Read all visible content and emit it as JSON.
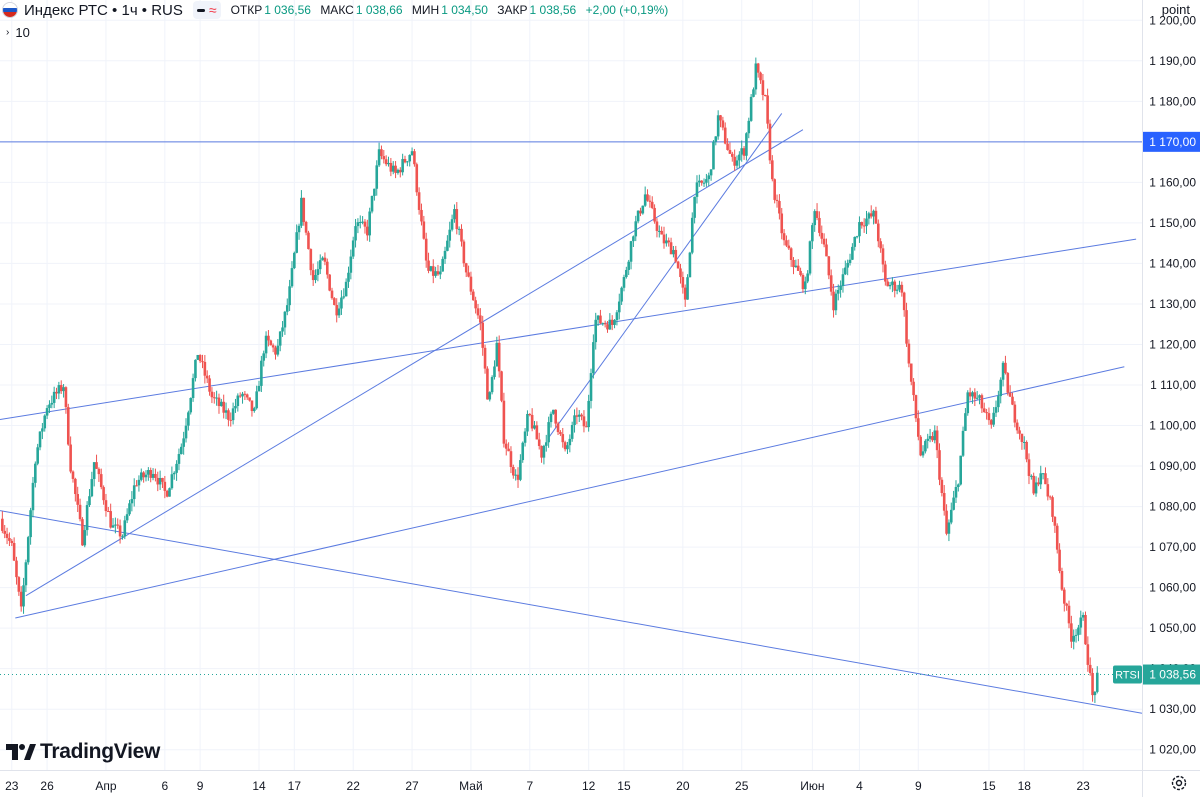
{
  "header": {
    "symbol": "Индекс РТС • 1ч • RUS",
    "ohlc": [
      {
        "label": "ОТКР",
        "value": "1 036,56"
      },
      {
        "label": "МАКС",
        "value": "1 038,66"
      },
      {
        "label": "МИН",
        "value": "1 034,50"
      },
      {
        "label": "ЗАКР",
        "value": "1 038,56"
      }
    ],
    "change": "+2,00 (+0,19%)",
    "pill_wave": "≈"
  },
  "indicator": {
    "chevron": "›",
    "value": "10"
  },
  "price_axis": {
    "title": "point"
  },
  "logo": {
    "text": "TradingView"
  },
  "colors": {
    "up": "#26a69a",
    "down": "#ef5350",
    "line": "#5b7be0",
    "grid": "#f0f3fa",
    "axis_text": "#131722",
    "last_price": "#26a69a",
    "level_label": "#2962ff"
  },
  "chart_data": {
    "type": "candlestick",
    "timeframe": "1h",
    "ylim": [
      1015,
      1205
    ],
    "y_ticks": [
      1020,
      1030,
      1040,
      1050,
      1060,
      1070,
      1080,
      1090,
      1100,
      1110,
      1120,
      1130,
      1140,
      1150,
      1160,
      1170,
      1180,
      1190,
      1200
    ],
    "y_tick_labels": [
      "1 020,00",
      "1 030,00",
      "1 040,00",
      "1 050,00",
      "1 060,00",
      "1 070,00",
      "1 080,00",
      "1 090,00",
      "1 100,00",
      "1 110,00",
      "1 120,00",
      "1 130,00",
      "1 140,00",
      "1 150,00",
      "1 160,00",
      "1 170,00",
      "1 180,00",
      "1 190,00",
      "1 200,00"
    ],
    "x_ticks": [
      {
        "label": "23",
        "x": 0
      },
      {
        "label": "26",
        "x": 3
      },
      {
        "label": "Апр",
        "x": 8
      },
      {
        "label": "6",
        "x": 13
      },
      {
        "label": "9",
        "x": 16
      },
      {
        "label": "14",
        "x": 21
      },
      {
        "label": "17",
        "x": 24
      },
      {
        "label": "22",
        "x": 29
      },
      {
        "label": "27",
        "x": 34
      },
      {
        "label": "Май",
        "x": 39
      },
      {
        "label": "7",
        "x": 44
      },
      {
        "label": "12",
        "x": 49
      },
      {
        "label": "15",
        "x": 52
      },
      {
        "label": "20",
        "x": 57
      },
      {
        "label": "25",
        "x": 62
      },
      {
        "label": "Июн",
        "x": 68
      },
      {
        "label": "4",
        "x": 72
      },
      {
        "label": "9",
        "x": 77
      },
      {
        "label": "15",
        "x": 83
      },
      {
        "label": "18",
        "x": 86
      },
      {
        "label": "23",
        "x": 91
      }
    ],
    "x_range": [
      -1,
      96
    ],
    "trajectory": [
      {
        "x": -1,
        "y": 1077
      },
      {
        "x": 0,
        "y": 1070
      },
      {
        "x": 0.8,
        "y": 1054
      },
      {
        "x": 2,
        "y": 1092
      },
      {
        "x": 3,
        "y": 1105
      },
      {
        "x": 4.4,
        "y": 1110
      },
      {
        "x": 5,
        "y": 1090
      },
      {
        "x": 6,
        "y": 1072
      },
      {
        "x": 7,
        "y": 1091
      },
      {
        "x": 8.5,
        "y": 1075
      },
      {
        "x": 9.4,
        "y": 1073
      },
      {
        "x": 10.5,
        "y": 1086
      },
      {
        "x": 12,
        "y": 1089
      },
      {
        "x": 13.1,
        "y": 1083
      },
      {
        "x": 14.5,
        "y": 1096
      },
      {
        "x": 15.8,
        "y": 1118
      },
      {
        "x": 17,
        "y": 1107
      },
      {
        "x": 18.5,
        "y": 1102
      },
      {
        "x": 19.5,
        "y": 1108
      },
      {
        "x": 20.6,
        "y": 1103
      },
      {
        "x": 21.5,
        "y": 1121
      },
      {
        "x": 22.5,
        "y": 1118
      },
      {
        "x": 23.5,
        "y": 1131
      },
      {
        "x": 24.6,
        "y": 1155
      },
      {
        "x": 25.6,
        "y": 1136
      },
      {
        "x": 26.5,
        "y": 1141
      },
      {
        "x": 27.5,
        "y": 1128
      },
      {
        "x": 28.4,
        "y": 1135
      },
      {
        "x": 29.2,
        "y": 1150
      },
      {
        "x": 30.2,
        "y": 1148
      },
      {
        "x": 31.2,
        "y": 1167
      },
      {
        "x": 32.6,
        "y": 1162
      },
      {
        "x": 34,
        "y": 1168
      },
      {
        "x": 35.3,
        "y": 1138
      },
      {
        "x": 36.4,
        "y": 1137
      },
      {
        "x": 37.6,
        "y": 1153
      },
      {
        "x": 38.6,
        "y": 1138
      },
      {
        "x": 39.8,
        "y": 1125
      },
      {
        "x": 40.5,
        "y": 1105
      },
      {
        "x": 41.2,
        "y": 1120
      },
      {
        "x": 41.8,
        "y": 1097
      },
      {
        "x": 42.9,
        "y": 1086
      },
      {
        "x": 43.9,
        "y": 1103
      },
      {
        "x": 45,
        "y": 1093
      },
      {
        "x": 46,
        "y": 1104
      },
      {
        "x": 47,
        "y": 1093
      },
      {
        "x": 48,
        "y": 1103
      },
      {
        "x": 48.8,
        "y": 1099
      },
      {
        "x": 49.5,
        "y": 1126
      },
      {
        "x": 51,
        "y": 1125
      },
      {
        "x": 52,
        "y": 1136
      },
      {
        "x": 52.8,
        "y": 1148
      },
      {
        "x": 53.8,
        "y": 1157
      },
      {
        "x": 55.2,
        "y": 1146
      },
      {
        "x": 56.3,
        "y": 1143
      },
      {
        "x": 57.2,
        "y": 1130
      },
      {
        "x": 58,
        "y": 1158
      },
      {
        "x": 59.2,
        "y": 1161
      },
      {
        "x": 60,
        "y": 1176
      },
      {
        "x": 61.2,
        "y": 1165
      },
      {
        "x": 62.2,
        "y": 1168
      },
      {
        "x": 63.2,
        "y": 1188
      },
      {
        "x": 64,
        "y": 1180
      },
      {
        "x": 64.6,
        "y": 1160
      },
      {
        "x": 65.6,
        "y": 1145
      },
      {
        "x": 66.4,
        "y": 1140
      },
      {
        "x": 67.4,
        "y": 1134
      },
      {
        "x": 68.2,
        "y": 1154
      },
      {
        "x": 69,
        "y": 1144
      },
      {
        "x": 69.8,
        "y": 1130
      },
      {
        "x": 71,
        "y": 1140
      },
      {
        "x": 72,
        "y": 1150
      },
      {
        "x": 73.3,
        "y": 1152
      },
      {
        "x": 74.2,
        "y": 1135
      },
      {
        "x": 75.6,
        "y": 1134
      },
      {
        "x": 76.2,
        "y": 1115
      },
      {
        "x": 77.2,
        "y": 1093
      },
      {
        "x": 78.4,
        "y": 1098
      },
      {
        "x": 79.4,
        "y": 1073
      },
      {
        "x": 80.4,
        "y": 1087
      },
      {
        "x": 81.2,
        "y": 1108
      },
      {
        "x": 82.2,
        "y": 1106
      },
      {
        "x": 83.2,
        "y": 1099
      },
      {
        "x": 84.2,
        "y": 1114
      },
      {
        "x": 85,
        "y": 1104
      },
      {
        "x": 86,
        "y": 1095
      },
      {
        "x": 86.8,
        "y": 1083
      },
      {
        "x": 87.4,
        "y": 1089
      },
      {
        "x": 88.4,
        "y": 1079
      },
      {
        "x": 89.2,
        "y": 1060
      },
      {
        "x": 90,
        "y": 1048
      },
      {
        "x": 91,
        "y": 1052
      },
      {
        "x": 91.8,
        "y": 1033
      },
      {
        "x": 92.3,
        "y": 1038.56
      }
    ],
    "horizontal_levels": [
      {
        "price": 1170,
        "label": "1 170,00"
      }
    ],
    "trend_lines": [
      {
        "x1": -1,
        "y1": 1101.5,
        "x2": 95.5,
        "y2": 1146
      },
      {
        "x1": 0.3,
        "y1": 1052.5,
        "x2": 94.5,
        "y2": 1114.5
      },
      {
        "x1": -1,
        "y1": 1079,
        "x2": 96,
        "y2": 1029
      },
      {
        "x1": 1.2,
        "y1": 1058,
        "x2": 67.2,
        "y2": 1173
      },
      {
        "x1": 45.6,
        "y1": 1097,
        "x2": 65.4,
        "y2": 1177
      }
    ],
    "last_price": {
      "symbol": "RTSI",
      "value": 1038.56,
      "label": "1 038,56"
    }
  }
}
